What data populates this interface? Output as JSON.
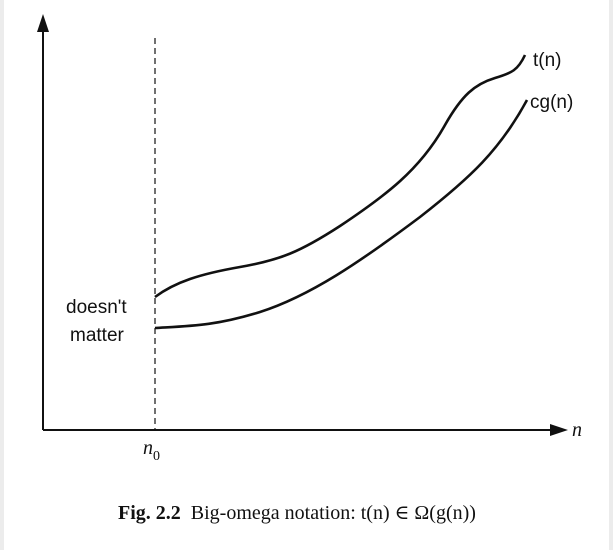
{
  "figure": {
    "curves": [
      {
        "label": "t(n)"
      },
      {
        "label": "cg(n)"
      }
    ],
    "region_label": [
      "doesn't",
      "matter"
    ],
    "x_axis_label": "n",
    "threshold": {
      "symbol": "n",
      "subscript": "0"
    },
    "caption": {
      "number": "Fig. 2.2",
      "text": "Big-omega notation: t(n) ∈ Ω(g(n))"
    }
  }
}
